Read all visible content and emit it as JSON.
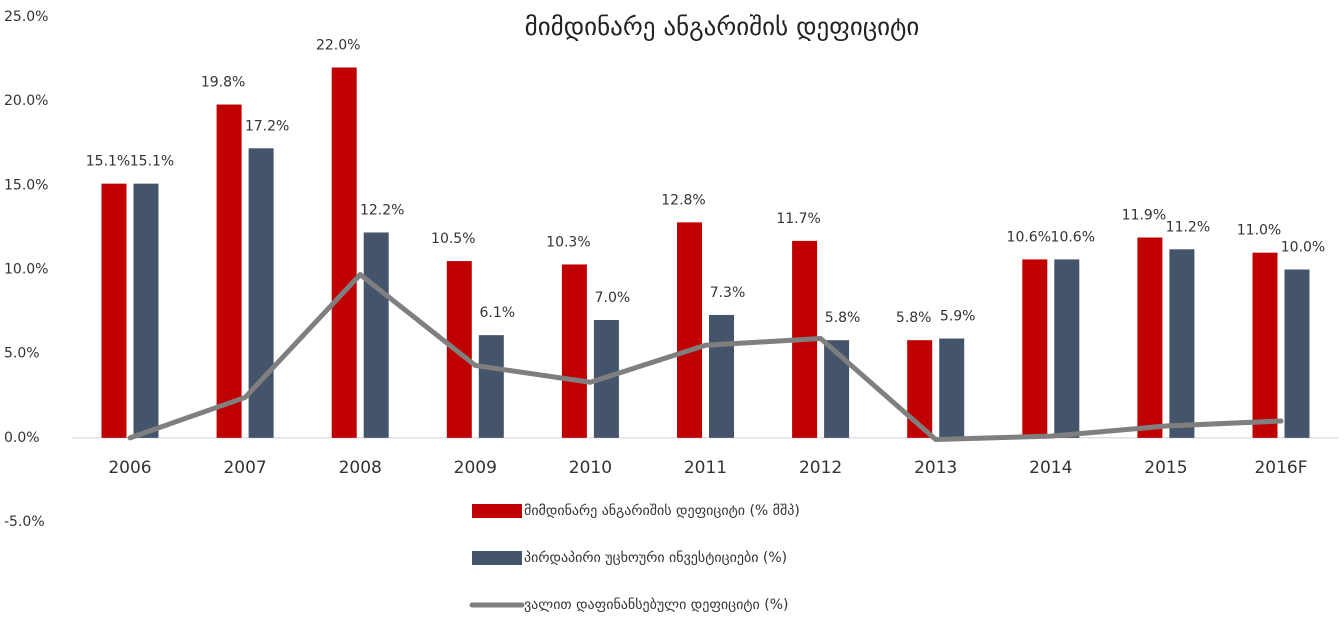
{
  "chart_data": {
    "type": "bar",
    "title": "მიმდინარე ანგარიშის დეფიციტი",
    "categories": [
      "2006",
      "2007",
      "2008",
      "2009",
      "2010",
      "2011",
      "2012",
      "2013",
      "2014",
      "2015",
      "2016F"
    ],
    "series": [
      {
        "name": "მიმდინარე ანგარიშის დეფიციტი (% მშპ)",
        "color": "#c00000",
        "type": "bar",
        "values": [
          15.1,
          19.8,
          22.0,
          10.5,
          10.3,
          12.8,
          11.7,
          5.8,
          10.6,
          11.9,
          11.0
        ],
        "value_labels": [
          "15.1%",
          "19.8%",
          "22.0%",
          "10.5%",
          "10.3%",
          "12.8%",
          "11.7%",
          "5.8%",
          "10.6%",
          "11.9%",
          "11.0%"
        ]
      },
      {
        "name": "პირდაპირი უცხოური ინვესტიციები (%)",
        "color": "#44546a",
        "type": "bar",
        "values": [
          15.1,
          17.2,
          12.2,
          6.1,
          7.0,
          7.3,
          5.8,
          5.9,
          10.6,
          11.2,
          10.0
        ],
        "value_labels": [
          "15.1%",
          "17.2%",
          "12.2%",
          "6.1%",
          "7.0%",
          "7.3%",
          "5.8%",
          "5.9%",
          "10.6%",
          "11.2%",
          "10.0%"
        ]
      },
      {
        "name": "ვალით დაფინანსებული დეფიციტი (%)",
        "color": "#7f7f7f",
        "type": "line",
        "values": [
          0.0,
          2.4,
          9.7,
          4.3,
          3.3,
          5.5,
          5.9,
          -0.1,
          0.1,
          0.7,
          1.0
        ]
      }
    ],
    "ylim": [
      -5,
      25
    ],
    "yticks": [
      {
        "value": -5,
        "label": "-5.0%"
      },
      {
        "value": 0,
        "label": "0.0%"
      },
      {
        "value": 5,
        "label": "5.0%"
      },
      {
        "value": 10,
        "label": "10.0%"
      },
      {
        "value": 15,
        "label": "15.0%"
      },
      {
        "value": 20,
        "label": "20.0%"
      },
      {
        "value": 25,
        "label": "25.0%"
      }
    ],
    "grid": false
  }
}
